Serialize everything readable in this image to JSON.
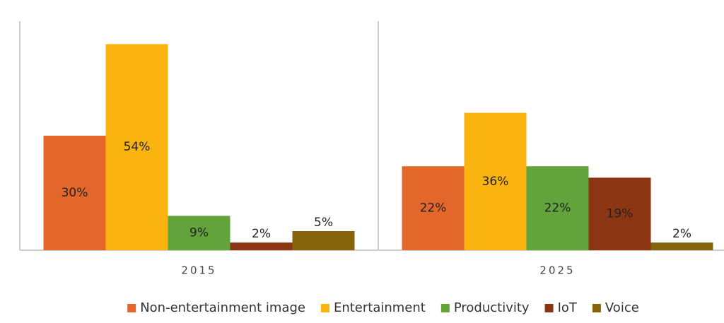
{
  "chart_data": {
    "type": "bar",
    "categories": [
      "2015",
      "2025"
    ],
    "series": [
      {
        "name": "Non-entertainment image",
        "color": "#e3672a",
        "values": [
          30,
          22
        ],
        "value_labels": [
          "30%",
          "22%"
        ]
      },
      {
        "name": "Entertainment",
        "color": "#fbb40f",
        "values": [
          54,
          36
        ],
        "value_labels": [
          "54%",
          "36%"
        ]
      },
      {
        "name": "Productivity",
        "color": "#63a33c",
        "values": [
          9,
          22
        ],
        "value_labels": [
          "9%",
          "22%"
        ]
      },
      {
        "name": "IoT",
        "color": "#8b3512",
        "values": [
          2,
          19
        ],
        "value_labels": [
          "2%",
          "19%"
        ]
      },
      {
        "name": "Voice",
        "color": "#86640b",
        "values": [
          5,
          2
        ],
        "value_labels": [
          "5%",
          "2%"
        ]
      }
    ],
    "ylim": [
      0,
      60
    ],
    "grid": false,
    "legend": "bottom"
  }
}
